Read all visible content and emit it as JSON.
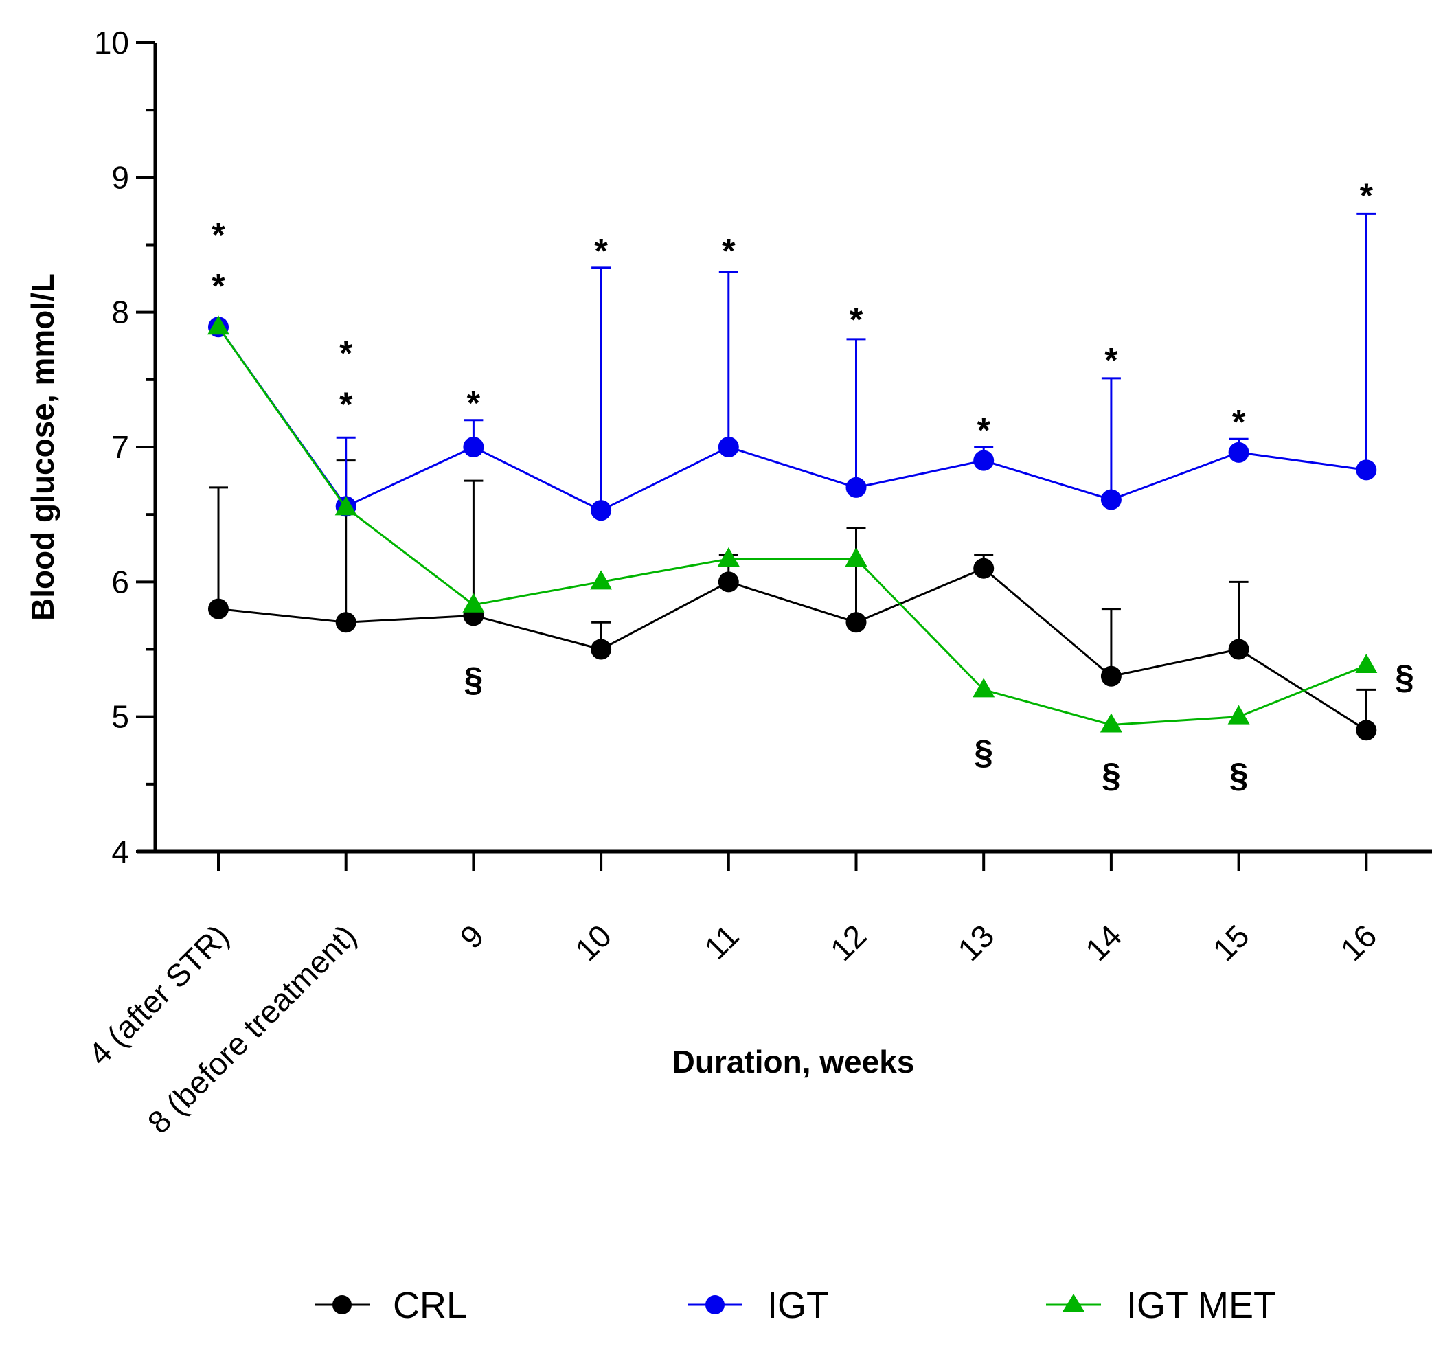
{
  "chart_data": {
    "type": "line",
    "title": "",
    "xlabel": "Duration, weeks",
    "ylabel": "Blood glucose, mmol/L",
    "ylim": [
      4,
      10
    ],
    "yticks": [
      "4",
      "5",
      "6",
      "7",
      "8",
      "9",
      "10"
    ],
    "categories": [
      "4 (after STR)",
      "8 (before treatment)",
      "9",
      "10",
      "11",
      "12",
      "13",
      "14",
      "15",
      "16"
    ],
    "series": [
      {
        "name": "CRL",
        "color": "#000000",
        "marker": "circle",
        "values": [
          5.8,
          5.7,
          5.75,
          5.5,
          6.0,
          5.7,
          6.1,
          5.3,
          5.5,
          4.9
        ],
        "error_upper": [
          6.7,
          6.9,
          6.75,
          5.7,
          6.2,
          6.4,
          6.2,
          5.8,
          6.0,
          5.2
        ]
      },
      {
        "name": "IGT",
        "color": "#0000ee",
        "marker": "circle",
        "values": [
          7.89,
          6.56,
          7.0,
          6.53,
          7.0,
          6.7,
          6.9,
          6.61,
          6.96,
          6.83
        ],
        "error_upper": [
          null,
          7.07,
          7.2,
          8.33,
          8.3,
          7.8,
          7.0,
          7.51,
          7.06,
          8.73
        ]
      },
      {
        "name": "IGT MET",
        "color": "#00b400",
        "marker": "triangle",
        "values": [
          7.89,
          6.55,
          5.83,
          6.0,
          6.17,
          6.17,
          5.2,
          4.94,
          5.0,
          5.38
        ],
        "error_upper": [
          null,
          null,
          null,
          null,
          null,
          null,
          null,
          null,
          null,
          null
        ]
      }
    ],
    "annotations": [
      {
        "text": "*",
        "category": 0,
        "y": 8.58
      },
      {
        "text": "*",
        "category": 0,
        "y": 8.2
      },
      {
        "text": "*",
        "category": 1,
        "y": 7.7
      },
      {
        "text": "*",
        "category": 1,
        "y": 7.32
      },
      {
        "text": "*",
        "category": 2,
        "y": 7.33
      },
      {
        "text": "*",
        "category": 3,
        "y": 8.46
      },
      {
        "text": "*",
        "category": 4,
        "y": 8.46
      },
      {
        "text": "*",
        "category": 5,
        "y": 7.95
      },
      {
        "text": "*",
        "category": 6,
        "y": 7.13
      },
      {
        "text": "*",
        "category": 7,
        "y": 7.65
      },
      {
        "text": "*",
        "category": 8,
        "y": 7.19
      },
      {
        "text": "*",
        "category": 9,
        "y": 8.87
      },
      {
        "text": "§",
        "category": 2,
        "y": 5.28
      },
      {
        "text": "§",
        "category": 6,
        "y": 4.74
      },
      {
        "text": "§",
        "category": 7,
        "y": 4.57
      },
      {
        "text": "§",
        "category": 8,
        "y": 4.57
      },
      {
        "text": "§",
        "category": 9.3,
        "y": 5.3
      }
    ],
    "legend_position": "bottom"
  }
}
